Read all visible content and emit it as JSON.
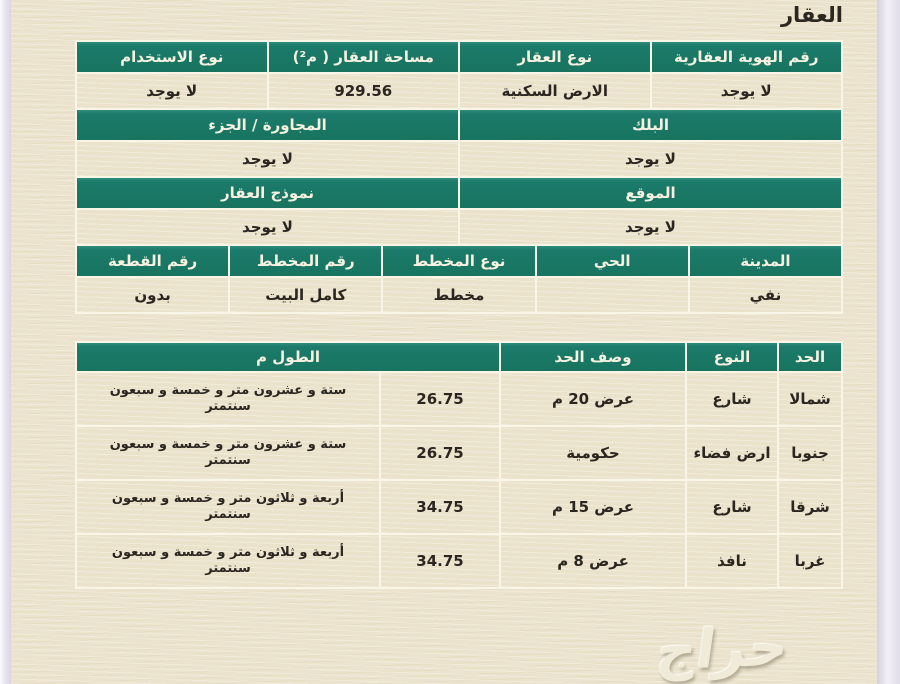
{
  "title": "العقار",
  "colors": {
    "header_green": "#1b7a6a",
    "paper": "#ebe3cd",
    "header_text": "#f6f1e0",
    "value_text": "#2b2620"
  },
  "property_table": {
    "band1": {
      "headers": [
        "رقم الهوية العقارية",
        "نوع العقار",
        "مساحة العقار ( م²)",
        "نوع الاستخدام"
      ],
      "values": [
        "لا يوجد",
        "الارض السكنية",
        "929.56",
        "لا يوجد"
      ]
    },
    "band2": {
      "headers": [
        "البلك",
        "المجاورة / الجزء"
      ],
      "values": [
        "لا يوجد",
        "لا يوجد"
      ]
    },
    "band3": {
      "headers": [
        "الموقع",
        "نموذج العقار"
      ],
      "values": [
        "لا يوجد",
        "لا يوجد"
      ]
    },
    "band4": {
      "headers": [
        "المدينة",
        "الحي",
        "نوع المخطط",
        "رقم المخطط",
        "رقم القطعة"
      ],
      "values": [
        "نفي",
        "",
        "مخطط",
        "كامل البيت",
        "بدون"
      ]
    }
  },
  "boundaries_table": {
    "headers": {
      "side": "الحد",
      "type": "النوع",
      "description": "وصف الحد",
      "length": "الطول م"
    },
    "rows": [
      {
        "side": "شمالا",
        "type": "شارع",
        "description": "عرض 20 م",
        "length": "26.75",
        "length_text": "ستة و عشرون متر و خمسة و سبعون سنتمتر"
      },
      {
        "side": "جنوبا",
        "type": "ارض فضاء",
        "description": "حكومية",
        "length": "26.75",
        "length_text": "ستة و عشرون متر و خمسة و سبعون سنتمتر"
      },
      {
        "side": "شرقا",
        "type": "شارع",
        "description": "عرض 15 م",
        "length": "34.75",
        "length_text": "أربعة و ثلاثون متر و خمسة و سبعون سنتمتر"
      },
      {
        "side": "غربا",
        "type": "نافذ",
        "description": "عرض 8 م",
        "length": "34.75",
        "length_text": "أربعة و ثلاثون متر و خمسة و سبعون سنتمتر"
      }
    ]
  },
  "watermark": {
    "text": "حراج"
  }
}
